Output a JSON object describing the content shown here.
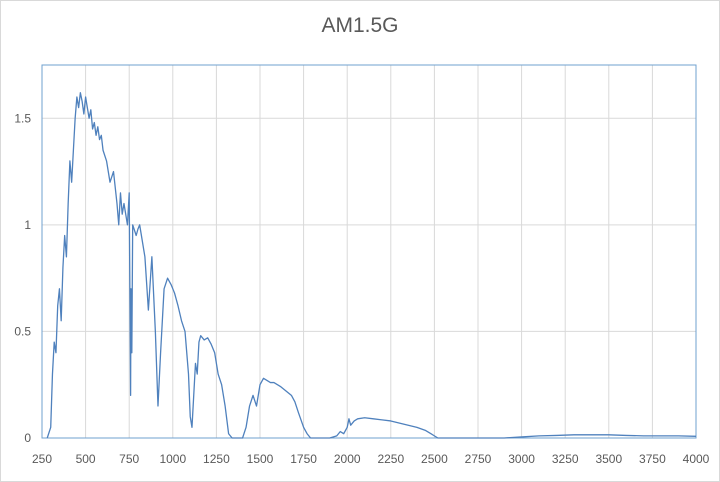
{
  "chart_data": {
    "type": "line",
    "title": "AM1.5G",
    "xlabel": "",
    "ylabel": "",
    "xlim": [
      250,
      4000
    ],
    "ylim": [
      0,
      1.75
    ],
    "xticks": [
      250,
      500,
      750,
      1000,
      1250,
      1500,
      1750,
      2000,
      2250,
      2500,
      2750,
      3000,
      3250,
      3500,
      3750,
      4000
    ],
    "xtick_labels": [
      "250",
      "500",
      "750",
      "1000",
      "1250",
      "1500",
      "1750",
      "2000",
      "2250",
      "2500",
      "2750",
      "3000",
      "3250",
      "3500",
      "3750",
      "4000"
    ],
    "yticks": [
      0,
      0.5,
      1,
      1.5
    ],
    "ytick_labels": [
      "0",
      "0.5",
      "1",
      "1.5"
    ],
    "grid": true,
    "legend": "none",
    "line_color": "#4f81bd",
    "series": [
      {
        "x": [
          280,
          300,
          310,
          320,
          330,
          340,
          350,
          360,
          370,
          380,
          390,
          400,
          410,
          420,
          430,
          440,
          450,
          460,
          470,
          480,
          490,
          500,
          510,
          520,
          530,
          540,
          550,
          560,
          570,
          580,
          590,
          600,
          620,
          640,
          660,
          680,
          690,
          700,
          710,
          720,
          740,
          750,
          758,
          760,
          765,
          770,
          790,
          800,
          810,
          820,
          840,
          860,
          880,
          900,
          915,
          930,
          940,
          950,
          970,
          990,
          1010,
          1030,
          1050,
          1070,
          1090,
          1100,
          1110,
          1120,
          1130,
          1140,
          1150,
          1160,
          1180,
          1200,
          1220,
          1240,
          1260,
          1280,
          1300,
          1320,
          1340,
          1350,
          1360,
          1380,
          1400,
          1420,
          1440,
          1460,
          1480,
          1500,
          1520,
          1540,
          1560,
          1580,
          1600,
          1620,
          1650,
          1680,
          1700,
          1720,
          1750,
          1770,
          1790,
          1800,
          1810,
          1850,
          1900,
          1940,
          1960,
          1980,
          2000,
          2010,
          2020,
          2040,
          2060,
          2100,
          2150,
          2200,
          2250,
          2300,
          2350,
          2400,
          2450,
          2480,
          2500,
          2520,
          2600,
          2700,
          2800,
          2900,
          3000,
          3100,
          3200,
          3300,
          3400,
          3500,
          3600,
          3700,
          3800,
          3900,
          4000
        ],
        "y": [
          0,
          0.05,
          0.3,
          0.45,
          0.4,
          0.62,
          0.7,
          0.55,
          0.8,
          0.95,
          0.85,
          1.1,
          1.3,
          1.2,
          1.35,
          1.5,
          1.6,
          1.55,
          1.62,
          1.58,
          1.52,
          1.6,
          1.55,
          1.5,
          1.54,
          1.45,
          1.48,
          1.42,
          1.46,
          1.4,
          1.42,
          1.35,
          1.3,
          1.2,
          1.25,
          1.1,
          1.0,
          1.15,
          1.05,
          1.1,
          1.0,
          1.15,
          0.2,
          0.7,
          0.4,
          1.0,
          0.95,
          0.98,
          1.0,
          0.95,
          0.85,
          0.6,
          0.85,
          0.5,
          0.15,
          0.4,
          0.55,
          0.7,
          0.75,
          0.72,
          0.68,
          0.62,
          0.55,
          0.5,
          0.3,
          0.1,
          0.05,
          0.2,
          0.35,
          0.3,
          0.45,
          0.48,
          0.46,
          0.47,
          0.44,
          0.4,
          0.3,
          0.25,
          0.15,
          0.02,
          0.0,
          0.0,
          0.0,
          0.0,
          0.0,
          0.05,
          0.15,
          0.2,
          0.15,
          0.25,
          0.28,
          0.27,
          0.26,
          0.26,
          0.25,
          0.24,
          0.22,
          0.2,
          0.17,
          0.12,
          0.05,
          0.02,
          0.0,
          0.0,
          0.0,
          0.0,
          0.0,
          0.01,
          0.03,
          0.02,
          0.05,
          0.09,
          0.06,
          0.08,
          0.09,
          0.095,
          0.09,
          0.085,
          0.08,
          0.07,
          0.06,
          0.05,
          0.035,
          0.02,
          0.01,
          0.0,
          0.0,
          0.0,
          0.0,
          0.0,
          0.005,
          0.01,
          0.012,
          0.015,
          0.015,
          0.015,
          0.012,
          0.01,
          0.01,
          0.01,
          0.008
        ]
      }
    ]
  }
}
